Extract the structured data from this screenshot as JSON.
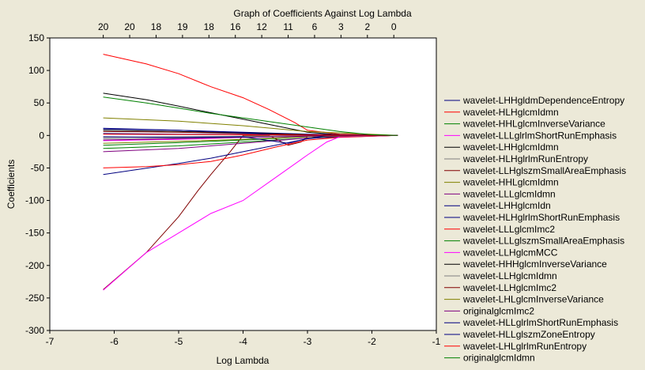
{
  "chart_data": {
    "type": "line",
    "title": "Graph of Coefficients Against Log Lambda",
    "xlabel": "Log Lambda",
    "ylabel": "Coefficients",
    "xlim": [
      -7,
      -1
    ],
    "ylim": [
      -300,
      150
    ],
    "x_ticks": [
      -7,
      -6,
      -5,
      -4,
      -3,
      -2,
      -1
    ],
    "y_ticks": [
      -300,
      -250,
      -200,
      -150,
      -100,
      -50,
      0,
      50,
      100,
      150
    ],
    "top_axis": {
      "positions": [
        -6.17,
        -5.76,
        -5.35,
        -4.94,
        -4.53,
        -4.12,
        -3.71,
        -3.3,
        -2.89,
        -2.48,
        -2.07,
        -1.66
      ],
      "labels": [
        "20",
        "20",
        "18",
        "19",
        "18",
        "16",
        "12",
        "11",
        "6",
        "3",
        "2",
        "0"
      ]
    },
    "grid": false,
    "legend_position": "right",
    "series": [
      {
        "name": "wavelet-LHHgldmDependenceEntropy",
        "color": "#000080",
        "points": [
          [
            -6.17,
            3
          ],
          [
            -5,
            2
          ],
          [
            -4,
            1.5
          ],
          [
            -3,
            0.5
          ],
          [
            -1.6,
            0
          ]
        ]
      },
      {
        "name": "wavelet-HLHglcmIdmn",
        "color": "#ff0000",
        "points": [
          [
            -6.17,
            125
          ],
          [
            -5.5,
            110
          ],
          [
            -5,
            95
          ],
          [
            -4.5,
            75
          ],
          [
            -4,
            58
          ],
          [
            -3.6,
            40
          ],
          [
            -3.2,
            20
          ],
          [
            -3,
            8
          ],
          [
            -2.5,
            2
          ],
          [
            -1.6,
            0
          ]
        ]
      },
      {
        "name": "wavelet-HHLglcmInverseVariance",
        "color": "#008000",
        "points": [
          [
            -6.17,
            -20
          ],
          [
            -5,
            -16
          ],
          [
            -4,
            -10
          ],
          [
            -3,
            -4
          ],
          [
            -1.6,
            0
          ]
        ]
      },
      {
        "name": "wavelet-LLLglrlmShortRunEmphasis",
        "color": "#ff00ff",
        "points": [
          [
            -6.17,
            -8
          ],
          [
            -5,
            -6
          ],
          [
            -4,
            -3
          ],
          [
            -3,
            -1
          ],
          [
            -1.6,
            0
          ]
        ]
      },
      {
        "name": "wavelet-LHHglcmIdmn",
        "color": "#000000",
        "points": [
          [
            -6.17,
            65
          ],
          [
            -5.5,
            55
          ],
          [
            -5,
            45
          ],
          [
            -4.5,
            35
          ],
          [
            -4,
            25
          ],
          [
            -3.5,
            15
          ],
          [
            -3,
            5
          ],
          [
            -2.5,
            1
          ],
          [
            -1.6,
            0
          ]
        ]
      },
      {
        "name": "wavelet-HLHglrlmRunEntropy",
        "color": "#808080",
        "points": [
          [
            -6.17,
            -5
          ],
          [
            -5,
            -4
          ],
          [
            -4,
            -2
          ],
          [
            -3,
            -1
          ],
          [
            -1.6,
            0
          ]
        ]
      },
      {
        "name": "wavelet-LLHglszmSmallAreaEmphasis",
        "color": "#800000",
        "points": [
          [
            -6.17,
            -237
          ],
          [
            -5.5,
            -180
          ],
          [
            -5,
            -125
          ],
          [
            -4.7,
            -85
          ],
          [
            -4.5,
            -60
          ],
          [
            -4.2,
            -25
          ],
          [
            -4,
            0
          ],
          [
            -3.6,
            0
          ],
          [
            -3.3,
            -15
          ],
          [
            -3.1,
            -10
          ],
          [
            -3,
            -2
          ],
          [
            -1.6,
            0
          ]
        ]
      },
      {
        "name": "wavelet-HHLglcmIdmn",
        "color": "#808000",
        "points": [
          [
            -6.17,
            27
          ],
          [
            -5,
            22
          ],
          [
            -4,
            15
          ],
          [
            -3,
            6
          ],
          [
            -1.6,
            0
          ]
        ]
      },
      {
        "name": "wavelet-LLLglcmIdmn",
        "color": "#800080",
        "points": [
          [
            -6.17,
            -25
          ],
          [
            -5,
            -20
          ],
          [
            -4,
            -12
          ],
          [
            -3,
            -4
          ],
          [
            -1.6,
            0
          ]
        ]
      },
      {
        "name": "wavelet-LHHglcmIdn",
        "color": "#000080",
        "points": [
          [
            -6.17,
            -60
          ],
          [
            -5,
            -43
          ],
          [
            -4.5,
            -35
          ],
          [
            -4,
            -25
          ],
          [
            -3.5,
            -15
          ],
          [
            -3,
            -5
          ],
          [
            -2.5,
            -1
          ],
          [
            -1.6,
            0
          ]
        ]
      },
      {
        "name": "wavelet-HLHglrlmShortRunEmphasis",
        "color": "#000080",
        "points": [
          [
            -6.17,
            10
          ],
          [
            -5,
            8
          ],
          [
            -4,
            5
          ],
          [
            -3,
            2
          ],
          [
            -1.6,
            0
          ]
        ]
      },
      {
        "name": "wavelet-LLLglcmImc2",
        "color": "#ff0000",
        "points": [
          [
            -6.17,
            -50
          ],
          [
            -5.5,
            -48
          ],
          [
            -5,
            -45
          ],
          [
            -4.5,
            -40
          ],
          [
            -4,
            -30
          ],
          [
            -3.5,
            -18
          ],
          [
            -3,
            -7
          ],
          [
            -2.5,
            -3
          ],
          [
            -1.6,
            0
          ]
        ]
      },
      {
        "name": "wavelet-LLLglszmSmallAreaEmphasis",
        "color": "#008000",
        "points": [
          [
            -6.17,
            -15
          ],
          [
            -5,
            -11
          ],
          [
            -4,
            -7
          ],
          [
            -3,
            -2
          ],
          [
            -1.6,
            0
          ]
        ]
      },
      {
        "name": "wavelet-LLHglcmMCC",
        "color": "#ff00ff",
        "points": [
          [
            -6.17,
            -238
          ],
          [
            -5.5,
            -180
          ],
          [
            -5,
            -150
          ],
          [
            -4.5,
            -120
          ],
          [
            -4,
            -100
          ],
          [
            -3.5,
            -65
          ],
          [
            -3,
            -30
          ],
          [
            -2.7,
            -10
          ],
          [
            -2.5,
            -2
          ],
          [
            -1.6,
            0
          ]
        ]
      },
      {
        "name": "wavelet-HHHglcmInverseVariance",
        "color": "#000000",
        "points": [
          [
            -6.17,
            8
          ],
          [
            -5,
            6
          ],
          [
            -4,
            4
          ],
          [
            -3,
            1
          ],
          [
            -1.6,
            0
          ]
        ]
      },
      {
        "name": "wavelet-LLHglcmIdmn",
        "color": "#808080",
        "points": [
          [
            -6.17,
            -3
          ],
          [
            -5,
            -2
          ],
          [
            -4,
            -1
          ],
          [
            -1.6,
            0
          ]
        ]
      },
      {
        "name": "wavelet-LLHglcmImc2",
        "color": "#800000",
        "points": [
          [
            -6.17,
            6
          ],
          [
            -5,
            5
          ],
          [
            -4,
            3
          ],
          [
            -3,
            1
          ],
          [
            -1.6,
            0
          ]
        ]
      },
      {
        "name": "wavelet-LHLglcmInverseVariance",
        "color": "#808000",
        "points": [
          [
            -6.17,
            -12
          ],
          [
            -5,
            -9
          ],
          [
            -4,
            -6
          ],
          [
            -3,
            -2
          ],
          [
            -1.6,
            0
          ]
        ]
      },
      {
        "name": "originalglcmImc2",
        "color": "#800080",
        "points": [
          [
            -6.17,
            -7
          ],
          [
            -5,
            -5
          ],
          [
            -4,
            -3
          ],
          [
            -3,
            -1
          ],
          [
            -1.6,
            0
          ]
        ]
      },
      {
        "name": "wavelet-HLLglrlmShortRunEmphasis",
        "color": "#000080",
        "points": [
          [
            -6.17,
            11
          ],
          [
            -5,
            8
          ],
          [
            -4,
            4
          ],
          [
            -3.5,
            1
          ],
          [
            -3,
            0
          ],
          [
            -1.6,
            0
          ]
        ]
      },
      {
        "name": "wavelet-HLLglszmZoneEntropy",
        "color": "#000080",
        "points": [
          [
            -6.17,
            -2
          ],
          [
            -5,
            -3
          ],
          [
            -4,
            -2
          ],
          [
            -3.3,
            -12
          ],
          [
            -3,
            -5
          ],
          [
            -2.7,
            0
          ],
          [
            -1.6,
            0
          ]
        ]
      },
      {
        "name": "wavelet-LHLglrlmRunEntropy",
        "color": "#ff0000",
        "points": [
          [
            -6.17,
            2
          ],
          [
            -5,
            1.5
          ],
          [
            -4,
            1
          ],
          [
            -3,
            0.5
          ],
          [
            -1.6,
            0
          ]
        ]
      },
      {
        "name": "originalglcmIdmn",
        "color": "#008000",
        "points": [
          [
            -6.17,
            59
          ],
          [
            -5.5,
            50
          ],
          [
            -5,
            42
          ],
          [
            -4.5,
            34
          ],
          [
            -4,
            27
          ],
          [
            -3.5,
            20
          ],
          [
            -3,
            13
          ],
          [
            -2.5,
            6
          ],
          [
            -2,
            1
          ],
          [
            -1.6,
            0
          ]
        ]
      }
    ]
  }
}
